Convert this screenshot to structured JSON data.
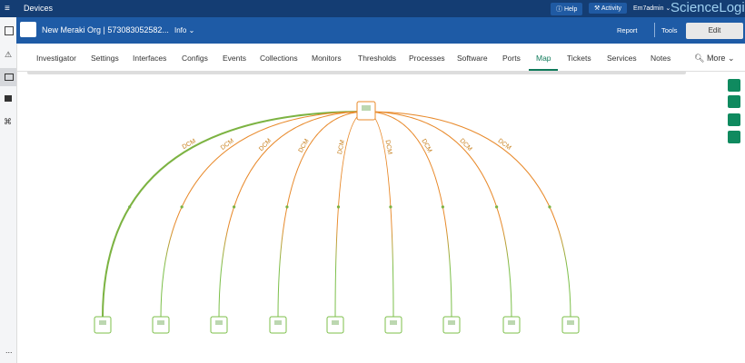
{
  "topbar": {
    "title": "Devices",
    "help": "Help",
    "activity": "Activity",
    "user": "Em7admin",
    "logo": "ScienceLogic"
  },
  "header": {
    "device": "New Meraki Org | 573083052582...",
    "info": "Info",
    "report": "Report",
    "tools": "Tools",
    "edit": "Edit"
  },
  "tabs": [
    "Investigator",
    "Settings",
    "Interfaces",
    "Configs",
    "Events",
    "Collections",
    "Monitors",
    "Thresholds",
    "Processes",
    "Software",
    "Ports",
    "Map",
    "Tickets",
    "Services",
    "Notes"
  ],
  "more": "More",
  "map": {
    "edges": [
      "DCM",
      "DCM",
      "DCM",
      "DCM",
      "DCM",
      "DCM",
      "DCM",
      "DCM",
      "DCM"
    ]
  },
  "sidebar": {
    "more": "..."
  }
}
